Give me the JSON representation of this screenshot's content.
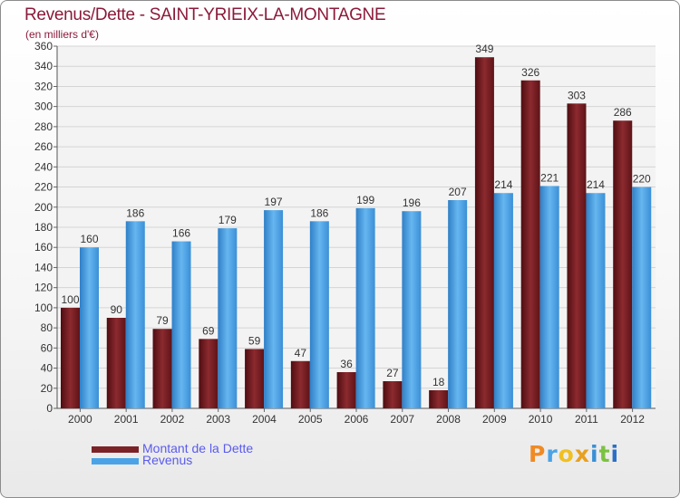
{
  "chart_data": {
    "type": "bar",
    "title": "Revenus/Dette - SAINT-YRIEIX-LA-MONTAGNE",
    "subtitle": "(en milliers d'€)",
    "categories": [
      "2000",
      "2001",
      "2002",
      "2003",
      "2004",
      "2005",
      "2006",
      "2007",
      "2008",
      "2009",
      "2010",
      "2011",
      "2012"
    ],
    "series": [
      {
        "name": "Montant de la Dette",
        "values": [
          100,
          90,
          79,
          69,
          59,
          47,
          36,
          27,
          18,
          349,
          326,
          303,
          286
        ],
        "color": "#7b2226"
      },
      {
        "name": "Revenus",
        "values": [
          160,
          186,
          166,
          179,
          197,
          186,
          199,
          196,
          207,
          214,
          221,
          214,
          220
        ],
        "color": "#4aa3e6"
      }
    ],
    "ylim": [
      0,
      360
    ],
    "ytick_step": 20,
    "grid": true,
    "legend_position": "bottom-left"
  },
  "branding": {
    "letters": [
      "P",
      "r",
      "o",
      "x",
      "i",
      "t",
      "i"
    ],
    "colors": [
      "#f08a24",
      "#4aa3e6",
      "#f0c020",
      "#e8a020",
      "#3a8fd6",
      "#7cc242",
      "#2a6fc6"
    ]
  }
}
